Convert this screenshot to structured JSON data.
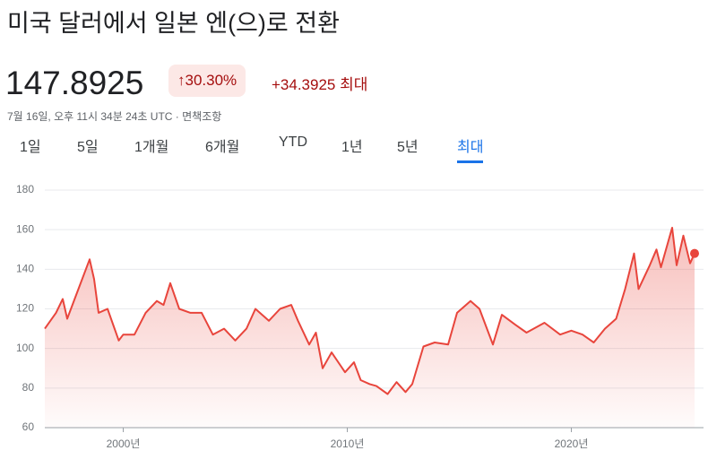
{
  "header": {
    "title": "미국 달러에서 일본 엔(으)로 전환",
    "price": "147.8925",
    "change_percent": "30.30%",
    "change_value": "+34.3925",
    "period": "최대",
    "timestamp": "7월 16일, 오후 11시 34분 24초 UTC · 면책조항"
  },
  "tabs": {
    "items": [
      "1일",
      "5일",
      "1개월",
      "6개월",
      "YTD",
      "1년",
      "5년",
      "최대"
    ],
    "selected": 7
  },
  "chart_data": {
    "type": "line",
    "x": [
      1996.5,
      1997,
      1997.3,
      1997.5,
      1998,
      1998.5,
      1998.7,
      1998.9,
      1999.3,
      1999.8,
      2000,
      2000.5,
      2001,
      2001.5,
      2001.8,
      2002.1,
      2002.5,
      2003,
      2003.5,
      2004,
      2004.5,
      2005,
      2005.5,
      2005.9,
      2006.5,
      2007,
      2007.5,
      2007.8,
      2008.3,
      2008.6,
      2008.9,
      2009.3,
      2009.9,
      2010.3,
      2010.6,
      2011,
      2011.3,
      2011.8,
      2012.2,
      2012.6,
      2012.9,
      2013.4,
      2013.9,
      2014.5,
      2014.9,
      2015.5,
      2015.9,
      2016.5,
      2016.9,
      2017.5,
      2018,
      2018.8,
      2019.5,
      2020,
      2020.5,
      2021,
      2021.5,
      2022,
      2022.4,
      2022.8,
      2023,
      2023.5,
      2023.8,
      2024,
      2024.5,
      2024.7,
      2025,
      2025.3,
      2025.5
    ],
    "series": [
      {
        "color": "#e8453c",
        "values": [
          110,
          118,
          125,
          115,
          130,
          145,
          135,
          118,
          120,
          104,
          107,
          107,
          118,
          124,
          122,
          133,
          120,
          118,
          118,
          107,
          110,
          104,
          110,
          120,
          114,
          120,
          122,
          114,
          102,
          108,
          90,
          98,
          88,
          93,
          84,
          82,
          81,
          77,
          83,
          78,
          82,
          101,
          103,
          102,
          118,
          124,
          120,
          102,
          117,
          112,
          108,
          113,
          107,
          109,
          107,
          103,
          110,
          115,
          130,
          148,
          130,
          142,
          150,
          141,
          161,
          142,
          157,
          143,
          148
        ]
      }
    ],
    "xlim": [
      1996.5,
      2025.5
    ],
    "ylim": [
      60,
      180
    ],
    "yticks": [
      60,
      80,
      100,
      120,
      140,
      160,
      180
    ],
    "xticks": [
      {
        "value": 2000,
        "label": "2000년"
      },
      {
        "value": 2010,
        "label": "2010년"
      },
      {
        "value": 2020,
        "label": "2020년"
      }
    ],
    "grid": true
  }
}
